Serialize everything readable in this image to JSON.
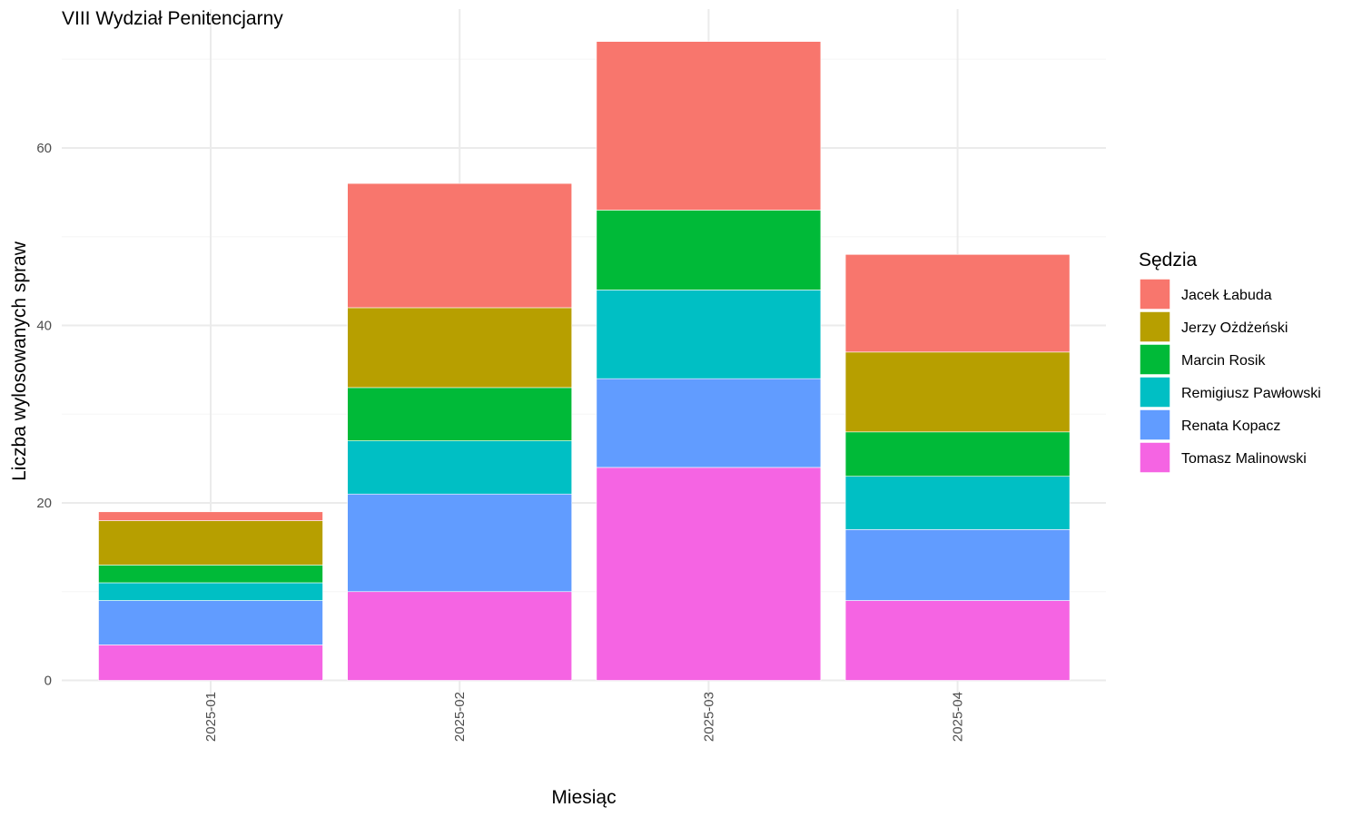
{
  "chart_data": {
    "type": "bar",
    "stacked": true,
    "title": "VIII Wydział Penitencjarny",
    "xlabel": "Miesiąc",
    "ylabel": "Liczba wylosowanych spraw",
    "categories": [
      "2025-01",
      "2025-02",
      "2025-03",
      "2025-04"
    ],
    "ylim": [
      0,
      72
    ],
    "yticks": [
      0,
      20,
      40,
      60
    ],
    "grid": true,
    "legend": {
      "title": "Sędzia",
      "position": "right"
    },
    "series": [
      {
        "name": "Jacek Łabuda",
        "color": "#F8766D",
        "values": [
          1,
          14,
          19,
          11
        ]
      },
      {
        "name": "Jerzy Ożdżeński",
        "color": "#B79F00",
        "values": [
          5,
          9,
          0,
          9
        ]
      },
      {
        "name": "Marcin Rosik",
        "color": "#00BA38",
        "values": [
          2,
          6,
          9,
          5
        ]
      },
      {
        "name": "Remigiusz Pawłowski",
        "color": "#00BFC4",
        "values": [
          2,
          6,
          10,
          6
        ]
      },
      {
        "name": "Renata Kopacz",
        "color": "#619CFF",
        "values": [
          5,
          11,
          10,
          8
        ]
      },
      {
        "name": "Tomasz Malinowski",
        "color": "#F564E3",
        "values": [
          4,
          10,
          24,
          9
        ]
      }
    ]
  }
}
